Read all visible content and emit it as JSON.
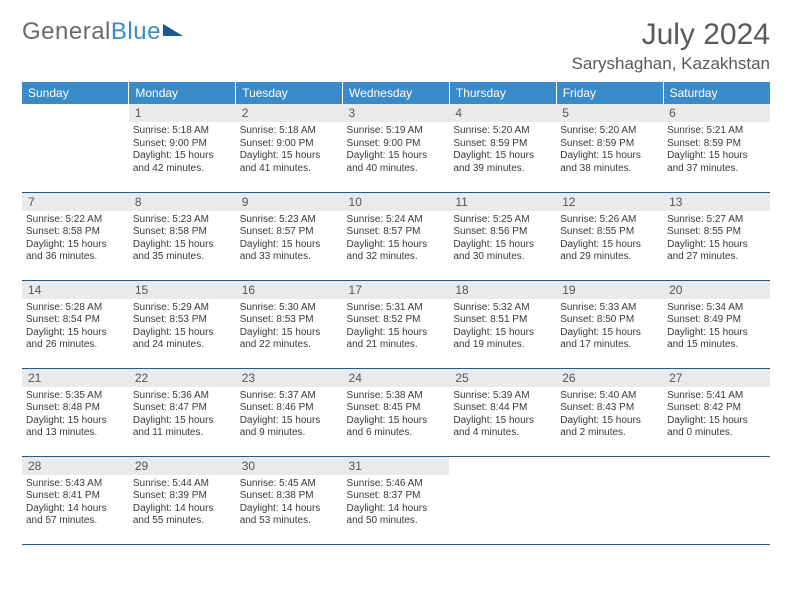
{
  "brand": {
    "part1": "General",
    "part2": "Blue"
  },
  "title": "July 2024",
  "location": "Saryshaghan, Kazakhstan",
  "colors": {
    "header_bg": "#3b8bc9",
    "header_text": "#ffffff",
    "daynum_bg": "#e9eaeb",
    "row_border": "#2a5a80",
    "body_text": "#3a3a3a",
    "title_text": "#5a5a5a"
  },
  "typography": {
    "title_fontsize": 30,
    "location_fontsize": 17,
    "dayheader_fontsize": 12,
    "daynum_fontsize": 12,
    "body_fontsize": 10
  },
  "weekdays": [
    "Sunday",
    "Monday",
    "Tuesday",
    "Wednesday",
    "Thursday",
    "Friday",
    "Saturday"
  ],
  "labels": {
    "sunrise": "Sunrise:",
    "sunset": "Sunset:",
    "daylight": "Daylight:"
  },
  "layout": {
    "first_weekday_index": 1,
    "days_in_month": 31
  },
  "days": [
    {
      "n": 1,
      "sunrise": "5:18 AM",
      "sunset": "9:00 PM",
      "daylight": "15 hours and 42 minutes."
    },
    {
      "n": 2,
      "sunrise": "5:18 AM",
      "sunset": "9:00 PM",
      "daylight": "15 hours and 41 minutes."
    },
    {
      "n": 3,
      "sunrise": "5:19 AM",
      "sunset": "9:00 PM",
      "daylight": "15 hours and 40 minutes."
    },
    {
      "n": 4,
      "sunrise": "5:20 AM",
      "sunset": "8:59 PM",
      "daylight": "15 hours and 39 minutes."
    },
    {
      "n": 5,
      "sunrise": "5:20 AM",
      "sunset": "8:59 PM",
      "daylight": "15 hours and 38 minutes."
    },
    {
      "n": 6,
      "sunrise": "5:21 AM",
      "sunset": "8:59 PM",
      "daylight": "15 hours and 37 minutes."
    },
    {
      "n": 7,
      "sunrise": "5:22 AM",
      "sunset": "8:58 PM",
      "daylight": "15 hours and 36 minutes."
    },
    {
      "n": 8,
      "sunrise": "5:23 AM",
      "sunset": "8:58 PM",
      "daylight": "15 hours and 35 minutes."
    },
    {
      "n": 9,
      "sunrise": "5:23 AM",
      "sunset": "8:57 PM",
      "daylight": "15 hours and 33 minutes."
    },
    {
      "n": 10,
      "sunrise": "5:24 AM",
      "sunset": "8:57 PM",
      "daylight": "15 hours and 32 minutes."
    },
    {
      "n": 11,
      "sunrise": "5:25 AM",
      "sunset": "8:56 PM",
      "daylight": "15 hours and 30 minutes."
    },
    {
      "n": 12,
      "sunrise": "5:26 AM",
      "sunset": "8:55 PM",
      "daylight": "15 hours and 29 minutes."
    },
    {
      "n": 13,
      "sunrise": "5:27 AM",
      "sunset": "8:55 PM",
      "daylight": "15 hours and 27 minutes."
    },
    {
      "n": 14,
      "sunrise": "5:28 AM",
      "sunset": "8:54 PM",
      "daylight": "15 hours and 26 minutes."
    },
    {
      "n": 15,
      "sunrise": "5:29 AM",
      "sunset": "8:53 PM",
      "daylight": "15 hours and 24 minutes."
    },
    {
      "n": 16,
      "sunrise": "5:30 AM",
      "sunset": "8:53 PM",
      "daylight": "15 hours and 22 minutes."
    },
    {
      "n": 17,
      "sunrise": "5:31 AM",
      "sunset": "8:52 PM",
      "daylight": "15 hours and 21 minutes."
    },
    {
      "n": 18,
      "sunrise": "5:32 AM",
      "sunset": "8:51 PM",
      "daylight": "15 hours and 19 minutes."
    },
    {
      "n": 19,
      "sunrise": "5:33 AM",
      "sunset": "8:50 PM",
      "daylight": "15 hours and 17 minutes."
    },
    {
      "n": 20,
      "sunrise": "5:34 AM",
      "sunset": "8:49 PM",
      "daylight": "15 hours and 15 minutes."
    },
    {
      "n": 21,
      "sunrise": "5:35 AM",
      "sunset": "8:48 PM",
      "daylight": "15 hours and 13 minutes."
    },
    {
      "n": 22,
      "sunrise": "5:36 AM",
      "sunset": "8:47 PM",
      "daylight": "15 hours and 11 minutes."
    },
    {
      "n": 23,
      "sunrise": "5:37 AM",
      "sunset": "8:46 PM",
      "daylight": "15 hours and 9 minutes."
    },
    {
      "n": 24,
      "sunrise": "5:38 AM",
      "sunset": "8:45 PM",
      "daylight": "15 hours and 6 minutes."
    },
    {
      "n": 25,
      "sunrise": "5:39 AM",
      "sunset": "8:44 PM",
      "daylight": "15 hours and 4 minutes."
    },
    {
      "n": 26,
      "sunrise": "5:40 AM",
      "sunset": "8:43 PM",
      "daylight": "15 hours and 2 minutes."
    },
    {
      "n": 27,
      "sunrise": "5:41 AM",
      "sunset": "8:42 PM",
      "daylight": "15 hours and 0 minutes."
    },
    {
      "n": 28,
      "sunrise": "5:43 AM",
      "sunset": "8:41 PM",
      "daylight": "14 hours and 57 minutes."
    },
    {
      "n": 29,
      "sunrise": "5:44 AM",
      "sunset": "8:39 PM",
      "daylight": "14 hours and 55 minutes."
    },
    {
      "n": 30,
      "sunrise": "5:45 AM",
      "sunset": "8:38 PM",
      "daylight": "14 hours and 53 minutes."
    },
    {
      "n": 31,
      "sunrise": "5:46 AM",
      "sunset": "8:37 PM",
      "daylight": "14 hours and 50 minutes."
    }
  ]
}
